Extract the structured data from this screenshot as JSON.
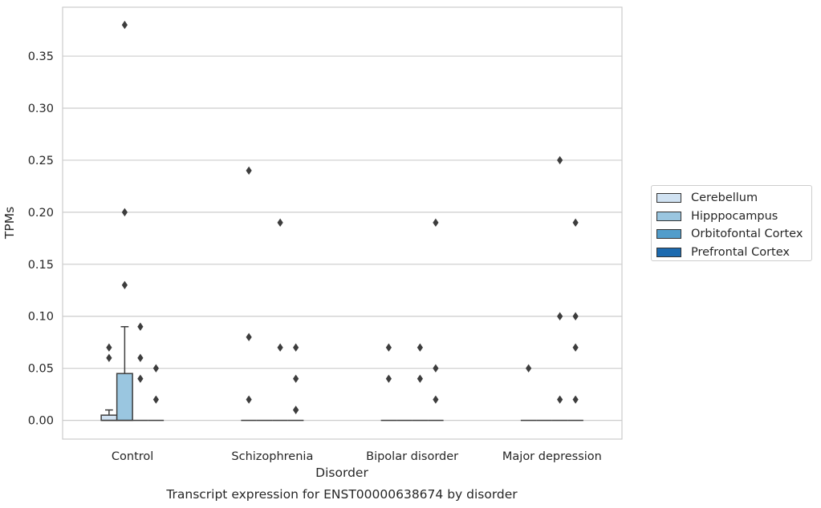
{
  "chart_data": {
    "type": "box",
    "title": "Transcript expression for ENST00000638674 by disorder",
    "xlabel": "Disorder",
    "ylabel": "TPMs",
    "ylim": [
      -0.018,
      0.397
    ],
    "yticks": [
      "0.00",
      "0.05",
      "0.10",
      "0.15",
      "0.20",
      "0.25",
      "0.30",
      "0.35"
    ],
    "grid": true,
    "legend_position": "right",
    "categories": [
      "Control",
      "Schizophrenia",
      "Bipolar disorder",
      "Major depression"
    ],
    "series": [
      {
        "name": "Cerebellum",
        "color": "#d0e2f2",
        "boxes": [
          {
            "q1": 0,
            "median": 0,
            "q3": 0.005,
            "whisker_low": 0,
            "whisker_high": 0.01,
            "outliers": [
              0.07,
              0.06
            ]
          },
          {
            "q1": 0,
            "median": 0,
            "q3": 0,
            "whisker_low": 0,
            "whisker_high": 0,
            "outliers": [
              0.24,
              0.08,
              0.02
            ]
          },
          {
            "q1": 0,
            "median": 0,
            "q3": 0,
            "whisker_low": 0,
            "whisker_high": 0,
            "outliers": [
              0.07,
              0.04
            ]
          },
          {
            "q1": 0,
            "median": 0,
            "q3": 0,
            "whisker_low": 0,
            "whisker_high": 0,
            "outliers": [
              0.05
            ]
          }
        ]
      },
      {
        "name": "Hipppocampus",
        "color": "#9ac6e0",
        "boxes": [
          {
            "q1": 0,
            "median": 0,
            "q3": 0.045,
            "whisker_low": 0,
            "whisker_high": 0.09,
            "outliers": [
              0.38,
              0.2,
              0.13
            ]
          },
          {
            "q1": 0,
            "median": 0,
            "q3": 0,
            "whisker_low": 0,
            "whisker_high": 0,
            "outliers": []
          },
          {
            "q1": 0,
            "median": 0,
            "q3": 0,
            "whisker_low": 0,
            "whisker_high": 0,
            "outliers": []
          },
          {
            "q1": 0,
            "median": 0,
            "q3": 0,
            "whisker_low": 0,
            "whisker_high": 0,
            "outliers": []
          }
        ]
      },
      {
        "name": "Orbitofontal Cortex",
        "color": "#529dcb",
        "boxes": [
          {
            "q1": 0,
            "median": 0,
            "q3": 0,
            "whisker_low": 0,
            "whisker_high": 0,
            "outliers": [
              0.09,
              0.06,
              0.04
            ]
          },
          {
            "q1": 0,
            "median": 0,
            "q3": 0,
            "whisker_low": 0,
            "whisker_high": 0,
            "outliers": [
              0.19,
              0.07
            ]
          },
          {
            "q1": 0,
            "median": 0,
            "q3": 0,
            "whisker_low": 0,
            "whisker_high": 0,
            "outliers": [
              0.07,
              0.04
            ]
          },
          {
            "q1": 0,
            "median": 0,
            "q3": 0,
            "whisker_low": 0,
            "whisker_high": 0,
            "outliers": [
              0.25,
              0.1,
              0.02
            ]
          }
        ]
      },
      {
        "name": "Prefrontal Cortex",
        "color": "#1c6aaf",
        "boxes": [
          {
            "q1": 0,
            "median": 0,
            "q3": 0,
            "whisker_low": 0,
            "whisker_high": 0,
            "outliers": [
              0.05,
              0.02
            ]
          },
          {
            "q1": 0,
            "median": 0,
            "q3": 0,
            "whisker_low": 0,
            "whisker_high": 0,
            "outliers": [
              0.01
            ]
          },
          {
            "q1": 0,
            "median": 0,
            "q3": 0,
            "whisker_low": 0,
            "whisker_high": 0,
            "outliers": [
              0.02
            ]
          },
          {
            "q1": 0,
            "median": 0,
            "q3": 0,
            "whisker_low": 0,
            "whisker_high": 0,
            "outliers": [
              0.1
            ]
          }
        ]
      }
    ],
    "extra_outliers": [
      {
        "category": "Schizophrenia",
        "series": "Prefrontal Cortex",
        "values": [
          0.07,
          0.04,
          0.01
        ]
      },
      {
        "category": "Bipolar disorder",
        "series": "Prefrontal Cortex",
        "values": [
          0.19,
          0.05
        ]
      },
      {
        "category": "Major depression",
        "series": "Prefrontal Cortex",
        "values": [
          0.19,
          0.07,
          0.02
        ]
      }
    ]
  }
}
